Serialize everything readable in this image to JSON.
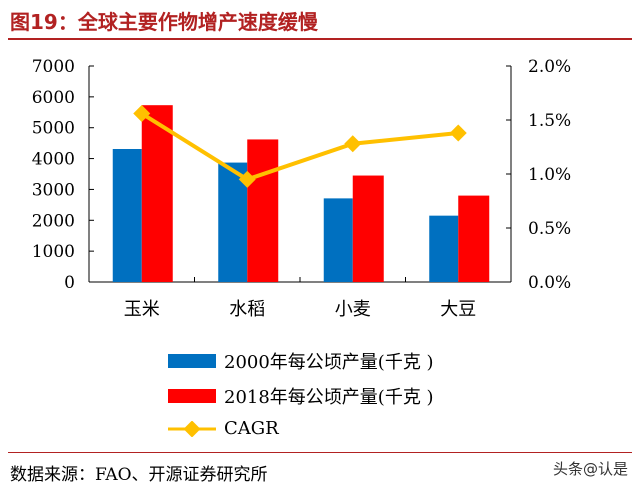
{
  "title": "图19：全球主要作物增产速度缓慢",
  "source": "数据来源：FAO、开源证券研究所",
  "watermark": "头条@认是",
  "colors": {
    "series1": "#0070C0",
    "series2": "#FF0000",
    "line": "#FFC000",
    "title": "#b22222"
  },
  "chart_data": {
    "type": "bar+line",
    "categories": [
      "玉米",
      "水稻",
      "小麦",
      "大豆"
    ],
    "series": [
      {
        "name": "2000年每公顷产量(千克 )",
        "type": "bar",
        "axis": "left",
        "values": [
          4310,
          3870,
          2710,
          2150
        ]
      },
      {
        "name": "2018年每公顷产量(千克 )",
        "type": "bar",
        "axis": "left",
        "values": [
          5730,
          4620,
          3450,
          2800
        ]
      },
      {
        "name": "CAGR",
        "type": "line",
        "axis": "right",
        "values": [
          1.56,
          0.95,
          1.28,
          1.38
        ]
      }
    ],
    "left_axis": {
      "ylim": [
        0,
        7000
      ],
      "ticks": [
        "0",
        "1000",
        "2000",
        "3000",
        "4000",
        "5000",
        "6000",
        "7000"
      ]
    },
    "right_axis": {
      "ylim": [
        0,
        2.0
      ],
      "ticks": [
        "0.0%",
        "0.5%",
        "1.0%",
        "1.5%",
        "2.0%"
      ]
    },
    "grid": false,
    "legend_placement": "bottom"
  }
}
